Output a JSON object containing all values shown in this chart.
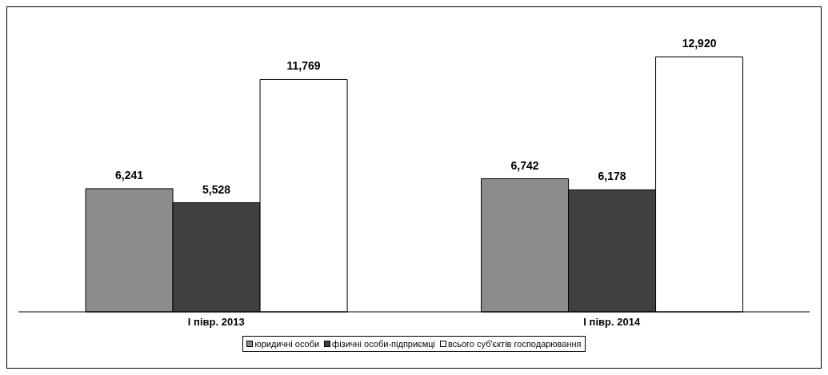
{
  "chart_data": {
    "type": "bar",
    "categories": [
      "І півр. 2013",
      "І півр. 2014"
    ],
    "series": [
      {
        "name": "юридичні особи",
        "color": "#8c8c8c",
        "values": [
          6241,
          6742
        ],
        "value_labels": [
          "6,241",
          "6,742"
        ]
      },
      {
        "name": "фізичні особи-підприємці",
        "color": "#404040",
        "values": [
          5528,
          6178
        ],
        "value_labels": [
          "5,528",
          "6,178"
        ]
      },
      {
        "name": "всього суб'єктів господарювання",
        "color": "#ffffff",
        "values": [
          11769,
          12920
        ],
        "value_labels": [
          "11,769",
          "12,920"
        ]
      }
    ],
    "legend": "bottom"
  }
}
